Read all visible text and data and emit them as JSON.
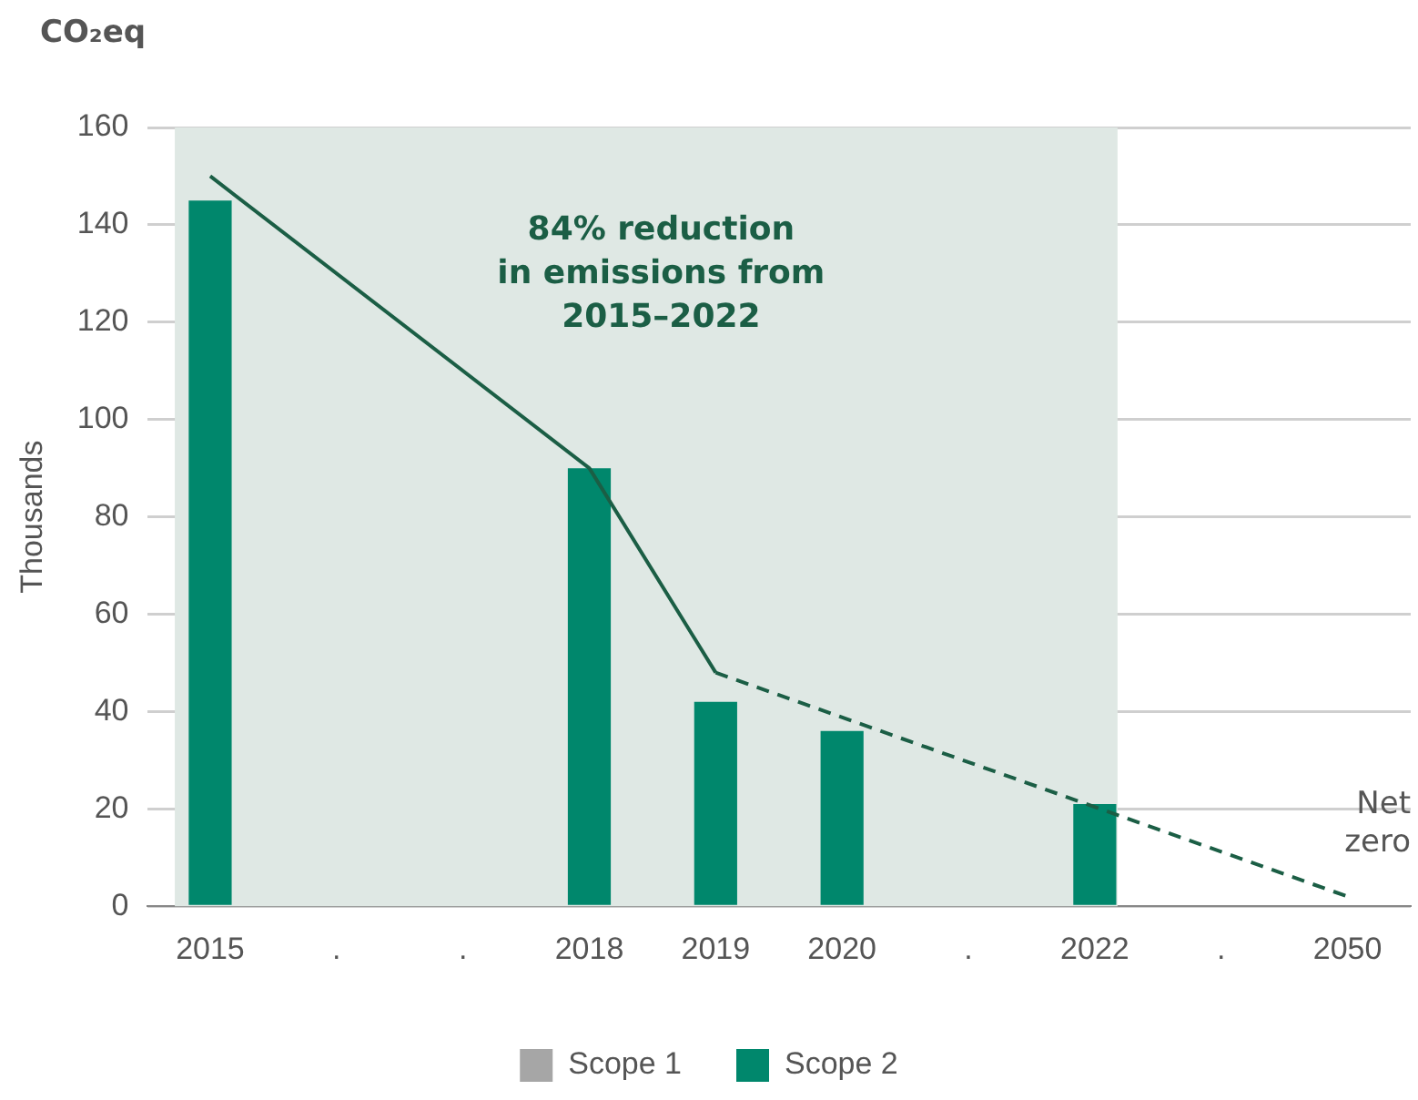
{
  "chart_data": {
    "type": "bar",
    "title": "CO₂eq",
    "ylabel": "Thousands",
    "categories": [
      "2015",
      ".",
      ".",
      "2018",
      "2019",
      "2020",
      ".",
      "2022",
      ".",
      "2050"
    ],
    "stacked": true,
    "series": [
      {
        "name": "Scope 1",
        "color": "#a6a6a6",
        "values": [
          null,
          null,
          null,
          null,
          null,
          null,
          null,
          null,
          null,
          null
        ]
      },
      {
        "name": "Scope 2",
        "color": "#00876c",
        "values": [
          145,
          null,
          null,
          90,
          42,
          36,
          null,
          21,
          null,
          null
        ]
      },
      {
        "type": "line",
        "color": "#1b5e45",
        "values": [
          150,
          null,
          null,
          90,
          48,
          null,
          null,
          null,
          null,
          null
        ],
        "line_style": "solid"
      },
      {
        "type": "line",
        "color": "#1b5e45",
        "values": [
          null,
          null,
          null,
          null,
          48,
          null,
          null,
          null,
          null,
          2
        ],
        "line_style": "dashed"
      }
    ],
    "ylim": [
      0,
      160
    ],
    "yticks": [
      0,
      20,
      40,
      60,
      80,
      100,
      120,
      140,
      160
    ],
    "grid": "y",
    "legend": "bottom",
    "bands": [
      {
        "axis": "x",
        "from": "2015",
        "to": "2022",
        "color": "#dfe8e4"
      }
    ],
    "annotations": [
      "84% reduction\nin emissions from\n2015–2022",
      "Net\nzero"
    ]
  }
}
